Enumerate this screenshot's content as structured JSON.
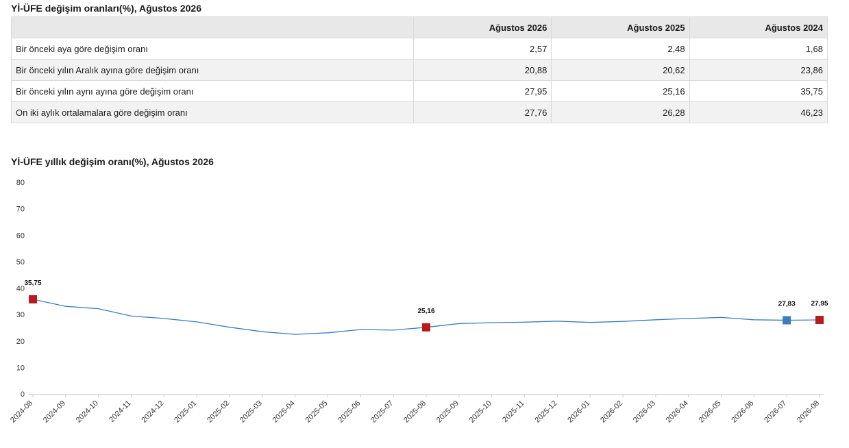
{
  "table": {
    "title": "Yİ-ÜFE değişim oranları(%), Ağustos 2026",
    "headers": [
      "",
      "Ağustos 2026",
      "Ağustos 2025",
      "Ağustos 2024"
    ],
    "rows": [
      {
        "label": "Bir önceki aya göre değişim oranı",
        "values": [
          "2,57",
          "2,48",
          "1,68"
        ]
      },
      {
        "label": "Bir önceki yılın Aralık ayına göre değişim oranı",
        "values": [
          "20,88",
          "20,62",
          "23,86"
        ]
      },
      {
        "label": "Bir önceki yılın aynı ayına göre değişim oranı",
        "values": [
          "27,95",
          "25,16",
          "35,75"
        ]
      },
      {
        "label": "On iki aylık ortalamalara göre değişim oranı",
        "values": [
          "27,76",
          "26,28",
          "46,23"
        ]
      }
    ]
  },
  "chart_data": {
    "type": "line",
    "title": "Yİ-ÜFE yıllık değişim oranı(%), Ağustos 2026",
    "xlabel": "",
    "ylabel": "",
    "ylim": [
      0,
      80
    ],
    "yticks": [
      "0",
      "10",
      "20",
      "30",
      "40",
      "50",
      "60",
      "70",
      "80"
    ],
    "grid": false,
    "legend": "none",
    "line_color": "#3b7dbd",
    "x": [
      "2024-08",
      "2024-09",
      "2024-10",
      "2024-11",
      "2024-12",
      "2025-01",
      "2025-02",
      "2025-03",
      "2025-04",
      "2025-05",
      "2025-06",
      "2025-07",
      "2025-08",
      "2025-09",
      "2025-10",
      "2025-11",
      "2025-12",
      "2026-01",
      "2026-02",
      "2026-03",
      "2026-04",
      "2026-05",
      "2026-06",
      "2026-07",
      "2026-08"
    ],
    "series": [
      {
        "name": "",
        "values": [
          35.75,
          33.1,
          32.2,
          29.4,
          28.5,
          27.2,
          25.2,
          23.5,
          22.5,
          23.1,
          24.3,
          24.1,
          25.16,
          26.6,
          26.9,
          27.1,
          27.5,
          27.0,
          27.4,
          28.0,
          28.5,
          28.9,
          28.0,
          27.83,
          27.95
        ]
      }
    ],
    "highlighted_points": [
      {
        "x": "2024-08",
        "value": 35.75,
        "label": "35,75",
        "color": "#b71c1c"
      },
      {
        "x": "2025-08",
        "value": 25.16,
        "label": "25,16",
        "color": "#b71c1c"
      },
      {
        "x": "2026-07",
        "value": 27.83,
        "label": "27,83",
        "color": "#3b7dbd"
      },
      {
        "x": "2026-08",
        "value": 27.95,
        "label": "27,95",
        "color": "#b71c1c"
      }
    ]
  }
}
